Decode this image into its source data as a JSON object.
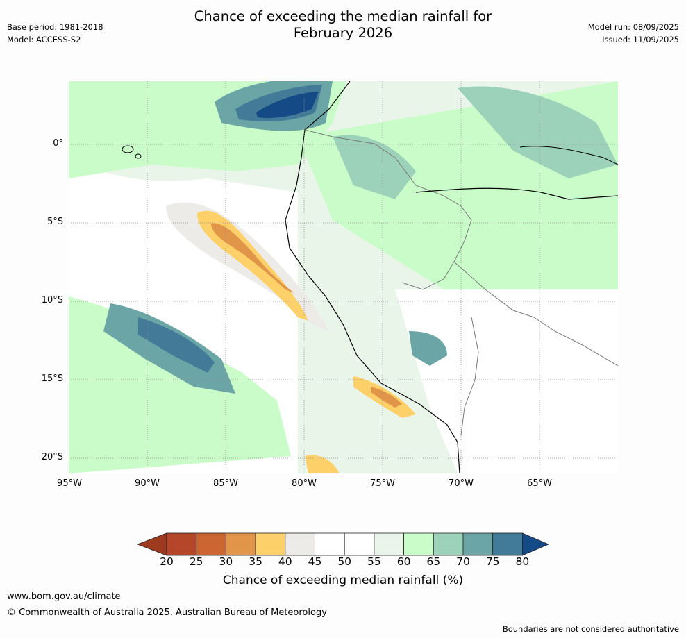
{
  "header": {
    "title_line1": "Chance of exceeding the median rainfall for",
    "title_line2": "February 2026",
    "base_period": "Base period: 1981-2018",
    "model": "Model: ACCESS-S2",
    "model_run": "Model run: 08/09/2025",
    "issued": "Issued: 11/09/2025"
  },
  "map": {
    "lat_labels": [
      "0°",
      "5°S",
      "10°S",
      "15°S",
      "20°S"
    ],
    "lon_labels": [
      "95°W",
      "90°W",
      "85°W",
      "80°W",
      "75°W",
      "70°W",
      "65°W"
    ]
  },
  "colorbar": {
    "ticks": [
      "20",
      "25",
      "30",
      "35",
      "40",
      "45",
      "50",
      "55",
      "60",
      "65",
      "70",
      "75",
      "80"
    ],
    "colors": [
      "#9e3a1f",
      "#b5462a",
      "#cd6532",
      "#e09548",
      "#fdd06a",
      "#edebe8",
      "#ffffff",
      "#ffffff",
      "#eaf5ea",
      "#c9fcc9",
      "#9dd2ba",
      "#6ba5a6",
      "#427a97",
      "#144a85"
    ],
    "label": "Chance of exceeding median rainfall (%)"
  },
  "footer": {
    "website": "www.bom.gov.au/climate",
    "copyright": "© Commonwealth of Australia 2025, Australian Bureau of Meteorology",
    "disclaimer": "Boundaries are not considered authoritative"
  }
}
